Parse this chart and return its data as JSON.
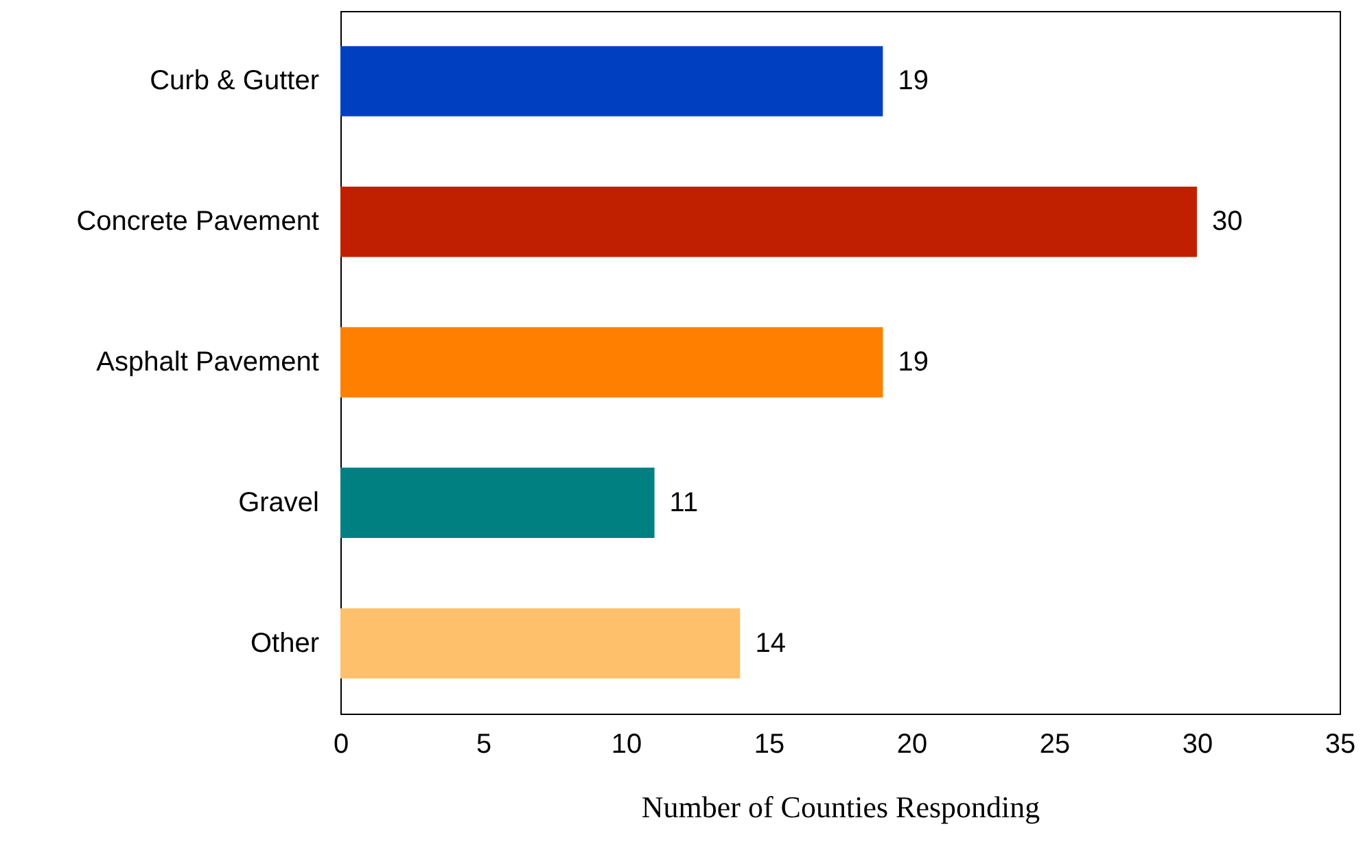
{
  "chart_data": {
    "type": "bar",
    "orientation": "horizontal",
    "xlabel": "Number of Counties Responding",
    "categories": [
      "Curb & Gutter",
      "Concrete Pavement",
      "Asphalt Pavement",
      "Gravel",
      "Other"
    ],
    "values": [
      19,
      30,
      19,
      11,
      14
    ],
    "colors": [
      "#0040c0",
      "#c02000",
      "#ff8000",
      "#008080",
      "#ffc06c"
    ],
    "xlim": [
      0,
      35
    ],
    "xticks": [
      0,
      5,
      10,
      15,
      20,
      25,
      30,
      35
    ],
    "data_labels": true
  }
}
